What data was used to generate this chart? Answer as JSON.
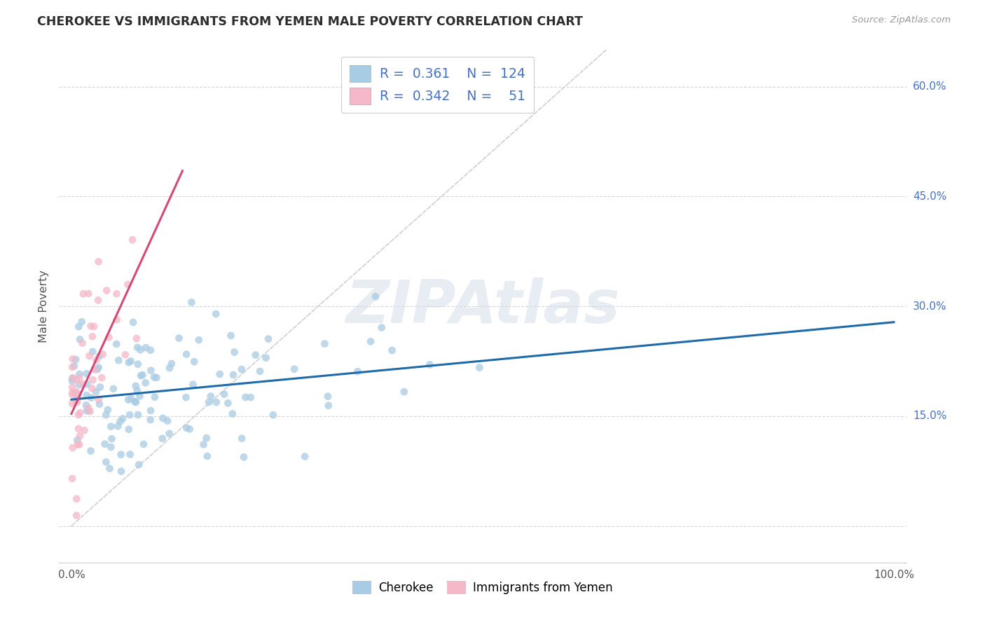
{
  "title": "CHEROKEE VS IMMIGRANTS FROM YEMEN MALE POVERTY CORRELATION CHART",
  "source": "Source: ZipAtlas.com",
  "ylabel": "Male Poverty",
  "watermark": "ZIPAtlas",
  "legend_blue_r": "0.361",
  "legend_blue_n": "124",
  "legend_pink_r": "0.342",
  "legend_pink_n": "51",
  "blue_color": "#a8cce4",
  "pink_color": "#f4b8c8",
  "trend_blue_color": "#1f6baa",
  "trend_pink_color": "#d64878",
  "diagonal_color": "#d0d0d0",
  "diagonal_linestyle": "--",
  "ytick_vals": [
    0.0,
    0.15,
    0.3,
    0.45,
    0.6
  ],
  "ytick_labels_right": [
    "",
    "15.0%",
    "30.0%",
    "45.0%",
    "60.0%"
  ],
  "xtick_vals": [
    0.0,
    0.1,
    0.2,
    0.3,
    0.4,
    0.5,
    0.6,
    0.7,
    0.8,
    0.9,
    1.0
  ],
  "xlim": [
    -0.015,
    1.015
  ],
  "ylim": [
    -0.05,
    0.65
  ],
  "figsize": [
    14.06,
    8.92
  ],
  "dpi": 100,
  "background_color": "#ffffff",
  "grid_color": "#d8d8d8",
  "blue_n": 124,
  "pink_n": 51,
  "marker_size": 60,
  "marker_alpha": 0.75
}
